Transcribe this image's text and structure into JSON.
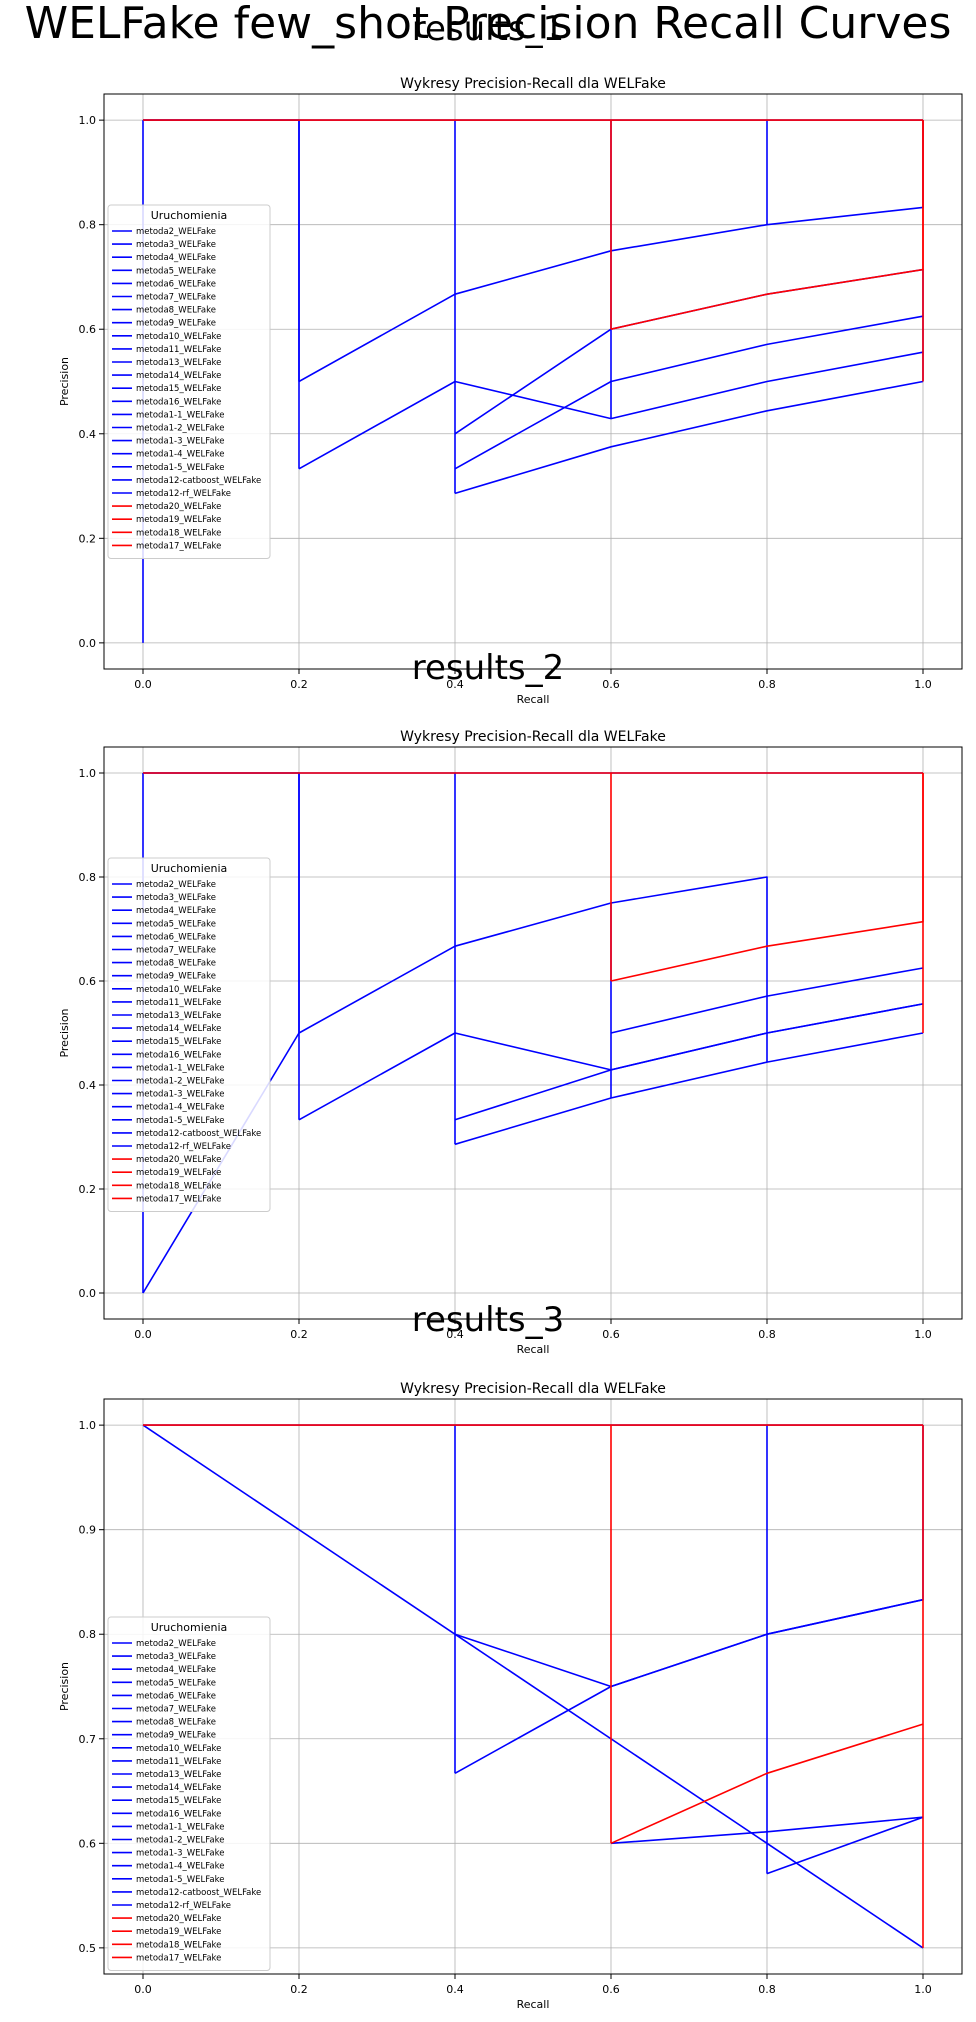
{
  "figure_title": "WELFake few_shot Precision Recall Curves",
  "colors": {
    "blue": "#0000ff",
    "red": "#ff0000",
    "grid": "#b0b0b0"
  },
  "chart_data": [
    {
      "panel_title": "results_1",
      "type": "line",
      "title": "Wykresy Precision-Recall dla WELFake",
      "xlabel": "Recall",
      "ylabel": "Precision",
      "xlim": [
        -0.05,
        1.05
      ],
      "ylim": [
        -0.05,
        1.05
      ],
      "xticks": [
        "0.0",
        "0.2",
        "0.4",
        "0.6",
        "0.8",
        "1.0"
      ],
      "yticks": [
        "0.0",
        "0.2",
        "0.4",
        "0.6",
        "0.8",
        "1.0"
      ],
      "grid": true,
      "legend": {
        "title": "Uruchomienia",
        "loc": "center-left",
        "entries": [
          {
            "name": "metoda2_WELFake",
            "color": "blue"
          },
          {
            "name": "metoda3_WELFake",
            "color": "blue"
          },
          {
            "name": "metoda4_WELFake",
            "color": "blue"
          },
          {
            "name": "metoda5_WELFake",
            "color": "blue"
          },
          {
            "name": "metoda6_WELFake",
            "color": "blue"
          },
          {
            "name": "metoda7_WELFake",
            "color": "blue"
          },
          {
            "name": "metoda8_WELFake",
            "color": "blue"
          },
          {
            "name": "metoda9_WELFake",
            "color": "blue"
          },
          {
            "name": "metoda10_WELFake",
            "color": "blue"
          },
          {
            "name": "metoda11_WELFake",
            "color": "blue"
          },
          {
            "name": "metoda13_WELFake",
            "color": "blue"
          },
          {
            "name": "metoda14_WELFake",
            "color": "blue"
          },
          {
            "name": "metoda15_WELFake",
            "color": "blue"
          },
          {
            "name": "metoda16_WELFake",
            "color": "blue"
          },
          {
            "name": "metoda1-1_WELFake",
            "color": "blue"
          },
          {
            "name": "metoda1-2_WELFake",
            "color": "blue"
          },
          {
            "name": "metoda1-3_WELFake",
            "color": "blue"
          },
          {
            "name": "metoda1-4_WELFake",
            "color": "blue"
          },
          {
            "name": "metoda1-5_WELFake",
            "color": "blue"
          },
          {
            "name": "metoda12-catboost_WELFake",
            "color": "blue"
          },
          {
            "name": "metoda12-rf_WELFake",
            "color": "blue"
          },
          {
            "name": "metoda20_WELFake",
            "color": "red"
          },
          {
            "name": "metoda19_WELFake",
            "color": "red"
          },
          {
            "name": "metoda18_WELFake",
            "color": "red"
          },
          {
            "name": "metoda17_WELFake",
            "color": "red"
          }
        ]
      },
      "lines": [
        {
          "color": "blue",
          "x": [
            0,
            0
          ],
          "y": [
            0,
            1
          ]
        },
        {
          "color": "blue",
          "x": [
            0,
            0.2,
            0.2
          ],
          "y": [
            1,
            1,
            0.5
          ]
        },
        {
          "color": "blue",
          "x": [
            0.2,
            0.4,
            0.6,
            0.8,
            1.0,
            1.0
          ],
          "y": [
            0.5,
            0.667,
            0.75,
            0.8,
            0.833,
            1
          ]
        },
        {
          "color": "blue",
          "x": [
            0.2,
            0.2
          ],
          "y": [
            0.333,
            1
          ]
        },
        {
          "color": "blue",
          "x": [
            0.4,
            0.4
          ],
          "y": [
            0.286,
            1
          ]
        },
        {
          "color": "blue",
          "x": [
            0.4,
            0.6,
            0.8,
            1.0,
            1.0
          ],
          "y": [
            0.4,
            0.6,
            0.667,
            0.714,
            0.5
          ]
        },
        {
          "color": "blue",
          "x": [
            0.4,
            0.6,
            0.8,
            1.0
          ],
          "y": [
            0.333,
            0.5,
            0.571,
            0.625
          ]
        },
        {
          "color": "blue",
          "x": [
            0.4,
            0.6,
            0.8,
            1.0
          ],
          "y": [
            0.286,
            0.375,
            0.444,
            0.5
          ]
        },
        {
          "color": "blue",
          "x": [
            0.2,
            0.4,
            0.6,
            0.8,
            1.0
          ],
          "y": [
            0.333,
            0.5,
            0.429,
            0.5,
            0.556
          ]
        },
        {
          "color": "blue",
          "x": [
            0.6,
            0.6
          ],
          "y": [
            0.429,
            1
          ]
        },
        {
          "color": "blue",
          "x": [
            0.8,
            0.8
          ],
          "y": [
            0.8,
            1
          ]
        },
        {
          "color": "blue",
          "x": [
            0,
            1
          ],
          "y": [
            1,
            1
          ]
        },
        {
          "color": "red",
          "x": [
            0.6,
            0.6
          ],
          "y": [
            0.6,
            1
          ]
        },
        {
          "color": "red",
          "x": [
            0.6,
            0.8,
            1.0,
            1.0
          ],
          "y": [
            0.6,
            0.667,
            0.714,
            1
          ]
        },
        {
          "color": "red",
          "x": [
            0,
            1
          ],
          "y": [
            1,
            1
          ]
        },
        {
          "color": "red",
          "x": [
            1,
            1
          ],
          "y": [
            0.5,
            1
          ]
        }
      ]
    },
    {
      "panel_title": "results_2",
      "type": "line",
      "title": "Wykresy Precision-Recall dla WELFake",
      "xlabel": "Recall",
      "ylabel": "Precision",
      "xlim": [
        -0.05,
        1.05
      ],
      "ylim": [
        -0.05,
        1.05
      ],
      "xticks": [
        "0.0",
        "0.2",
        "0.4",
        "0.6",
        "0.8",
        "1.0"
      ],
      "yticks": [
        "0.0",
        "0.2",
        "0.4",
        "0.6",
        "0.8",
        "1.0"
      ],
      "grid": true,
      "legend": {
        "title": "Uruchomienia",
        "loc": "center-left",
        "entries": [
          {
            "name": "metoda2_WELFake",
            "color": "blue"
          },
          {
            "name": "metoda3_WELFake",
            "color": "blue"
          },
          {
            "name": "metoda4_WELFake",
            "color": "blue"
          },
          {
            "name": "metoda5_WELFake",
            "color": "blue"
          },
          {
            "name": "metoda6_WELFake",
            "color": "blue"
          },
          {
            "name": "metoda7_WELFake",
            "color": "blue"
          },
          {
            "name": "metoda8_WELFake",
            "color": "blue"
          },
          {
            "name": "metoda9_WELFake",
            "color": "blue"
          },
          {
            "name": "metoda10_WELFake",
            "color": "blue"
          },
          {
            "name": "metoda11_WELFake",
            "color": "blue"
          },
          {
            "name": "metoda13_WELFake",
            "color": "blue"
          },
          {
            "name": "metoda14_WELFake",
            "color": "blue"
          },
          {
            "name": "metoda15_WELFake",
            "color": "blue"
          },
          {
            "name": "metoda16_WELFake",
            "color": "blue"
          },
          {
            "name": "metoda1-1_WELFake",
            "color": "blue"
          },
          {
            "name": "metoda1-2_WELFake",
            "color": "blue"
          },
          {
            "name": "metoda1-3_WELFake",
            "color": "blue"
          },
          {
            "name": "metoda1-4_WELFake",
            "color": "blue"
          },
          {
            "name": "metoda1-5_WELFake",
            "color": "blue"
          },
          {
            "name": "metoda12-catboost_WELFake",
            "color": "blue"
          },
          {
            "name": "metoda12-rf_WELFake",
            "color": "blue"
          },
          {
            "name": "metoda20_WELFake",
            "color": "red"
          },
          {
            "name": "metoda19_WELFake",
            "color": "red"
          },
          {
            "name": "metoda18_WELFake",
            "color": "red"
          },
          {
            "name": "metoda17_WELFake",
            "color": "red"
          }
        ]
      },
      "lines": [
        {
          "color": "blue",
          "x": [
            0,
            0
          ],
          "y": [
            0,
            1
          ]
        },
        {
          "color": "blue",
          "x": [
            0,
            0.2,
            0.2
          ],
          "y": [
            1,
            1,
            0.333
          ]
        },
        {
          "color": "blue",
          "x": [
            0,
            0.2,
            0.4,
            0.6,
            0.8,
            0.8
          ],
          "y": [
            0,
            0.5,
            0.667,
            0.75,
            0.8,
            0.444
          ]
        },
        {
          "color": "blue",
          "x": [
            0.2,
            0.2
          ],
          "y": [
            0.5,
            1
          ]
        },
        {
          "color": "blue",
          "x": [
            0.2,
            0.4,
            0.6,
            0.8,
            1.0
          ],
          "y": [
            0.333,
            0.5,
            0.429,
            0.5,
            0.556
          ]
        },
        {
          "color": "blue",
          "x": [
            0.4,
            0.4
          ],
          "y": [
            0.286,
            1
          ]
        },
        {
          "color": "blue",
          "x": [
            0.4,
            0.6,
            0.8,
            1.0
          ],
          "y": [
            0.286,
            0.375,
            0.444,
            0.5
          ]
        },
        {
          "color": "blue",
          "x": [
            0.4,
            0.6,
            0.8,
            1.0
          ],
          "y": [
            0.333,
            0.429,
            0.5,
            0.556
          ]
        },
        {
          "color": "blue",
          "x": [
            0.6,
            0.8,
            1.0
          ],
          "y": [
            0.5,
            0.571,
            0.625
          ]
        },
        {
          "color": "blue",
          "x": [
            0.6,
            0.6
          ],
          "y": [
            0.375,
            0.75
          ]
        },
        {
          "color": "blue",
          "x": [
            0,
            1
          ],
          "y": [
            1,
            1
          ]
        },
        {
          "color": "red",
          "x": [
            0.6,
            0.6
          ],
          "y": [
            0.6,
            1
          ]
        },
        {
          "color": "red",
          "x": [
            0.6,
            0.8,
            1.0,
            1.0
          ],
          "y": [
            0.6,
            0.667,
            0.714,
            1
          ]
        },
        {
          "color": "red",
          "x": [
            0,
            1
          ],
          "y": [
            1,
            1
          ]
        },
        {
          "color": "red",
          "x": [
            1,
            1
          ],
          "y": [
            0.5,
            1
          ]
        }
      ]
    },
    {
      "panel_title": "results_3",
      "type": "line",
      "title": "Wykresy Precision-Recall dla WELFake",
      "xlabel": "Recall",
      "ylabel": "Precision",
      "xlim": [
        -0.05,
        1.05
      ],
      "ylim": [
        0.475,
        1.025
      ],
      "xticks": [
        "0.0",
        "0.2",
        "0.4",
        "0.6",
        "0.8",
        "1.0"
      ],
      "yticks": [
        "0.5",
        "0.6",
        "0.7",
        "0.8",
        "0.9",
        "1.0"
      ],
      "grid": true,
      "legend": {
        "title": "Uruchomienia",
        "loc": "lower-left",
        "entries": [
          {
            "name": "metoda2_WELFake",
            "color": "blue"
          },
          {
            "name": "metoda3_WELFake",
            "color": "blue"
          },
          {
            "name": "metoda4_WELFake",
            "color": "blue"
          },
          {
            "name": "metoda5_WELFake",
            "color": "blue"
          },
          {
            "name": "metoda6_WELFake",
            "color": "blue"
          },
          {
            "name": "metoda7_WELFake",
            "color": "blue"
          },
          {
            "name": "metoda8_WELFake",
            "color": "blue"
          },
          {
            "name": "metoda9_WELFake",
            "color": "blue"
          },
          {
            "name": "metoda10_WELFake",
            "color": "blue"
          },
          {
            "name": "metoda11_WELFake",
            "color": "blue"
          },
          {
            "name": "metoda13_WELFake",
            "color": "blue"
          },
          {
            "name": "metoda14_WELFake",
            "color": "blue"
          },
          {
            "name": "metoda15_WELFake",
            "color": "blue"
          },
          {
            "name": "metoda16_WELFake",
            "color": "blue"
          },
          {
            "name": "metoda1-1_WELFake",
            "color": "blue"
          },
          {
            "name": "metoda1-2_WELFake",
            "color": "blue"
          },
          {
            "name": "metoda1-3_WELFake",
            "color": "blue"
          },
          {
            "name": "metoda1-4_WELFake",
            "color": "blue"
          },
          {
            "name": "metoda1-5_WELFake",
            "color": "blue"
          },
          {
            "name": "metoda12-catboost_WELFake",
            "color": "blue"
          },
          {
            "name": "metoda12-rf_WELFake",
            "color": "blue"
          },
          {
            "name": "metoda20_WELFake",
            "color": "red"
          },
          {
            "name": "metoda19_WELFake",
            "color": "red"
          },
          {
            "name": "metoda18_WELFake",
            "color": "red"
          },
          {
            "name": "metoda17_WELFake",
            "color": "red"
          }
        ]
      },
      "lines": [
        {
          "color": "blue",
          "x": [
            0,
            1.0
          ],
          "y": [
            1,
            0.5
          ]
        },
        {
          "color": "blue",
          "x": [
            0.4,
            0.4
          ],
          "y": [
            0.667,
            1
          ]
        },
        {
          "color": "blue",
          "x": [
            0.4,
            0.6,
            0.8,
            1.0,
            1.0
          ],
          "y": [
            0.667,
            0.75,
            0.8,
            0.833,
            1
          ]
        },
        {
          "color": "blue",
          "x": [
            0.4,
            0.6,
            0.8,
            1.0
          ],
          "y": [
            0.8,
            0.75,
            0.8,
            0.833
          ]
        },
        {
          "color": "blue",
          "x": [
            0.6,
            0.8,
            1.0
          ],
          "y": [
            0.6,
            0.611,
            0.625
          ]
        },
        {
          "color": "blue",
          "x": [
            0.8,
            0.8
          ],
          "y": [
            0.571,
            1
          ]
        },
        {
          "color": "blue",
          "x": [
            0.8,
            1.0
          ],
          "y": [
            0.571,
            0.625
          ]
        },
        {
          "color": "blue",
          "x": [
            0,
            1
          ],
          "y": [
            1,
            1
          ]
        },
        {
          "color": "red",
          "x": [
            0.6,
            0.6
          ],
          "y": [
            0.6,
            1
          ]
        },
        {
          "color": "red",
          "x": [
            0.6,
            0.8,
            1.0
          ],
          "y": [
            0.6,
            0.667,
            0.714
          ]
        },
        {
          "color": "red",
          "x": [
            0,
            1
          ],
          "y": [
            1,
            1
          ]
        },
        {
          "color": "red",
          "x": [
            1,
            1
          ],
          "y": [
            0.5,
            1
          ]
        }
      ]
    }
  ]
}
